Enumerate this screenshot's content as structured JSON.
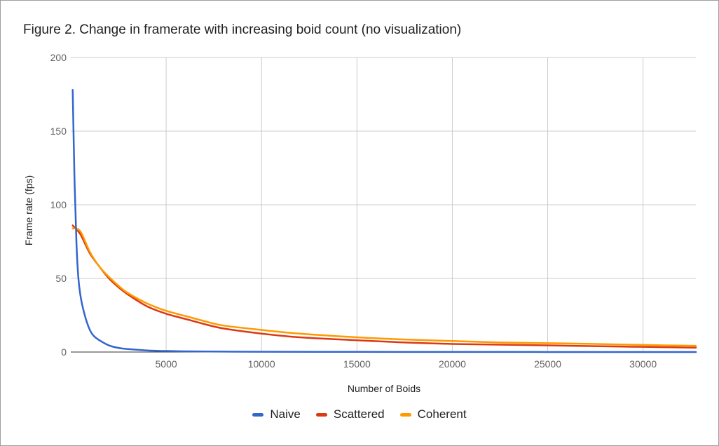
{
  "chart_data": {
    "type": "line",
    "title": "Figure 2. Change in framerate with increasing boid count (no visualization)",
    "xlabel": "Number of Boids",
    "ylabel": "Frame rate (fps)",
    "xlim": [
      0,
      32768
    ],
    "ylim": [
      0,
      200
    ],
    "xticks": [
      5000,
      10000,
      15000,
      20000,
      25000,
      30000
    ],
    "yticks": [
      0,
      50,
      100,
      150,
      200
    ],
    "grid": true,
    "legend_position": "bottom",
    "series": [
      {
        "name": "Naive",
        "color": "#3366cc",
        "x": [
          100,
          200,
          300,
          400,
          500,
          600,
          800,
          1000,
          1200,
          1500,
          2000,
          2500,
          3000,
          4000,
          5000,
          6000,
          8000,
          10000,
          15000,
          20000,
          25000,
          30000,
          32768
        ],
        "y": [
          178,
          115,
          73,
          50,
          39,
          32,
          22,
          15,
          11,
          8,
          4.5,
          2.8,
          2,
          1.1,
          0.7,
          0.5,
          0.3,
          0.2,
          0.1,
          0.05,
          0.03,
          0.02,
          0.02
        ]
      },
      {
        "name": "Scattered",
        "color": "#dc3912",
        "x": [
          100,
          500,
          1000,
          1500,
          2000,
          2500,
          3000,
          4000,
          5000,
          6000,
          7000,
          8000,
          10000,
          12000,
          15000,
          17500,
          20000,
          22500,
          25000,
          27500,
          30000,
          32768
        ],
        "y": [
          86,
          80,
          67,
          58,
          50,
          44,
          39,
          31,
          26,
          22.5,
          19,
          16,
          12.5,
          10,
          8,
          6.5,
          5.5,
          5,
          4.5,
          4,
          3.5,
          3
        ]
      },
      {
        "name": "Coherent",
        "color": "#ff9900",
        "x": [
          100,
          500,
          1000,
          1500,
          2000,
          2500,
          3000,
          4000,
          5000,
          6000,
          7000,
          8000,
          10000,
          12000,
          15000,
          17500,
          20000,
          22500,
          25000,
          27500,
          30000,
          32768
        ],
        "y": [
          84,
          82,
          68,
          58,
          51,
          45,
          40,
          33,
          28,
          24.5,
          21,
          18,
          15,
          12.5,
          10,
          8.5,
          7.5,
          6.5,
          6,
          5.5,
          4.8,
          4.2
        ]
      }
    ]
  }
}
